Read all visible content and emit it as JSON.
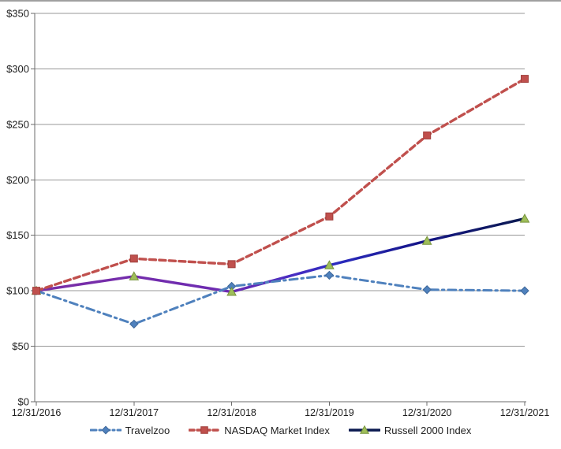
{
  "chart_data": {
    "type": "line",
    "title": "",
    "x_labels": [
      "12/31/2016",
      "12/31/2017",
      "12/31/2018",
      "12/31/2019",
      "12/31/2020",
      "12/31/2021"
    ],
    "y_ticks": [
      "$0",
      "$50",
      "$100",
      "$150",
      "$200",
      "$250",
      "$300",
      "$350"
    ],
    "ylim": [
      0,
      350
    ],
    "y_tick_step": 50,
    "grid": true,
    "legend_position": "bottom",
    "colors": {
      "gridline": "#979797",
      "axis": "#6b6b6b",
      "tick_text": "#1f1f1f"
    },
    "series": [
      {
        "name": "Travelzoo",
        "values": [
          100,
          70,
          104,
          114,
          101,
          100
        ],
        "color": "#4F81BD",
        "marker_fill": "#4F81BD",
        "marker_stroke": "#3E689A",
        "line_style": "dash-dot",
        "marker": "diamond"
      },
      {
        "name": "NASDAQ Market Index",
        "values": [
          100,
          129,
          124,
          167,
          240,
          291
        ],
        "color": "#C0504D",
        "marker_fill": "#C0504D",
        "marker_stroke": "#A03E3B",
        "line_style": "dashed",
        "marker": "square"
      },
      {
        "name": "Russell 2000 Index",
        "values": [
          100,
          113,
          99,
          123,
          145,
          165
        ],
        "color": "#7030A0",
        "color_end": "#0B1A50",
        "gradient_stops": [
          [
            "0",
            "#7B2EA6"
          ],
          [
            "0.40",
            "#6C2BB2"
          ],
          [
            "0.52",
            "#4A2DC2"
          ],
          [
            "0.62",
            "#2B2BBE"
          ],
          [
            "0.78",
            "#16168A"
          ],
          [
            "1",
            "#0B1A50"
          ]
        ],
        "marker_fill": "#9FBE5A",
        "marker_stroke": "#77943C",
        "line_style": "solid",
        "marker": "triangle"
      }
    ]
  }
}
